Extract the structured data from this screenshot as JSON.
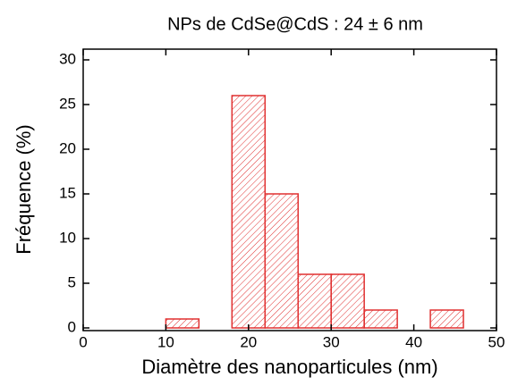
{
  "chart_data": {
    "type": "histogram",
    "title": "NPs de CdSe@CdS : 24 ± 6 nm",
    "xlabel": "Diamètre des nanoparticules (nm)",
    "ylabel": "Fréquence (%)",
    "bins": [
      10,
      14,
      18,
      22,
      26,
      30,
      34,
      38,
      42,
      46
    ],
    "values": [
      1,
      0,
      26,
      15,
      6,
      6,
      2,
      0,
      2
    ],
    "color": "#e03030",
    "xlim": [
      0,
      50
    ],
    "xticks": [
      0,
      10,
      20,
      30,
      40,
      50
    ],
    "ylim": [
      -0.3,
      31.2
    ],
    "yticks": [
      0,
      5,
      10,
      15,
      20,
      25,
      30
    ]
  }
}
